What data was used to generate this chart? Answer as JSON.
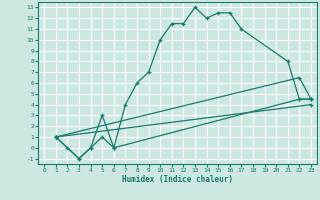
{
  "title": "",
  "xlabel": "Humidex (Indice chaleur)",
  "ylabel": "",
  "background_color": "#cce8e0",
  "grid_color": "#ffffff",
  "line_color": "#1a7a6e",
  "xlim": [
    -0.5,
    23.5
  ],
  "ylim": [
    -1.5,
    13.5
  ],
  "xticks": [
    0,
    1,
    2,
    3,
    4,
    5,
    6,
    7,
    8,
    9,
    10,
    11,
    12,
    13,
    14,
    15,
    16,
    17,
    18,
    19,
    20,
    21,
    22,
    23
  ],
  "yticks": [
    -1,
    0,
    1,
    2,
    3,
    4,
    5,
    6,
    7,
    8,
    9,
    10,
    11,
    12,
    13
  ],
  "series": [
    {
      "x": [
        1,
        2,
        3,
        4,
        5,
        6,
        7,
        8,
        9,
        10,
        11,
        12,
        13,
        14,
        15,
        16,
        17,
        21,
        22,
        23
      ],
      "y": [
        1,
        0,
        -1,
        0,
        3,
        0,
        4,
        6,
        7,
        10,
        11.5,
        11.5,
        13,
        12,
        12.5,
        12.5,
        11,
        8,
        4.5,
        4.5
      ]
    },
    {
      "x": [
        1,
        3,
        4,
        5,
        6,
        22,
        23
      ],
      "y": [
        1,
        -1,
        0,
        1,
        0,
        4.5,
        4.5
      ]
    },
    {
      "x": [
        1,
        22,
        23
      ],
      "y": [
        1,
        6.5,
        4.5
      ]
    },
    {
      "x": [
        1,
        23
      ],
      "y": [
        1,
        4
      ]
    }
  ]
}
